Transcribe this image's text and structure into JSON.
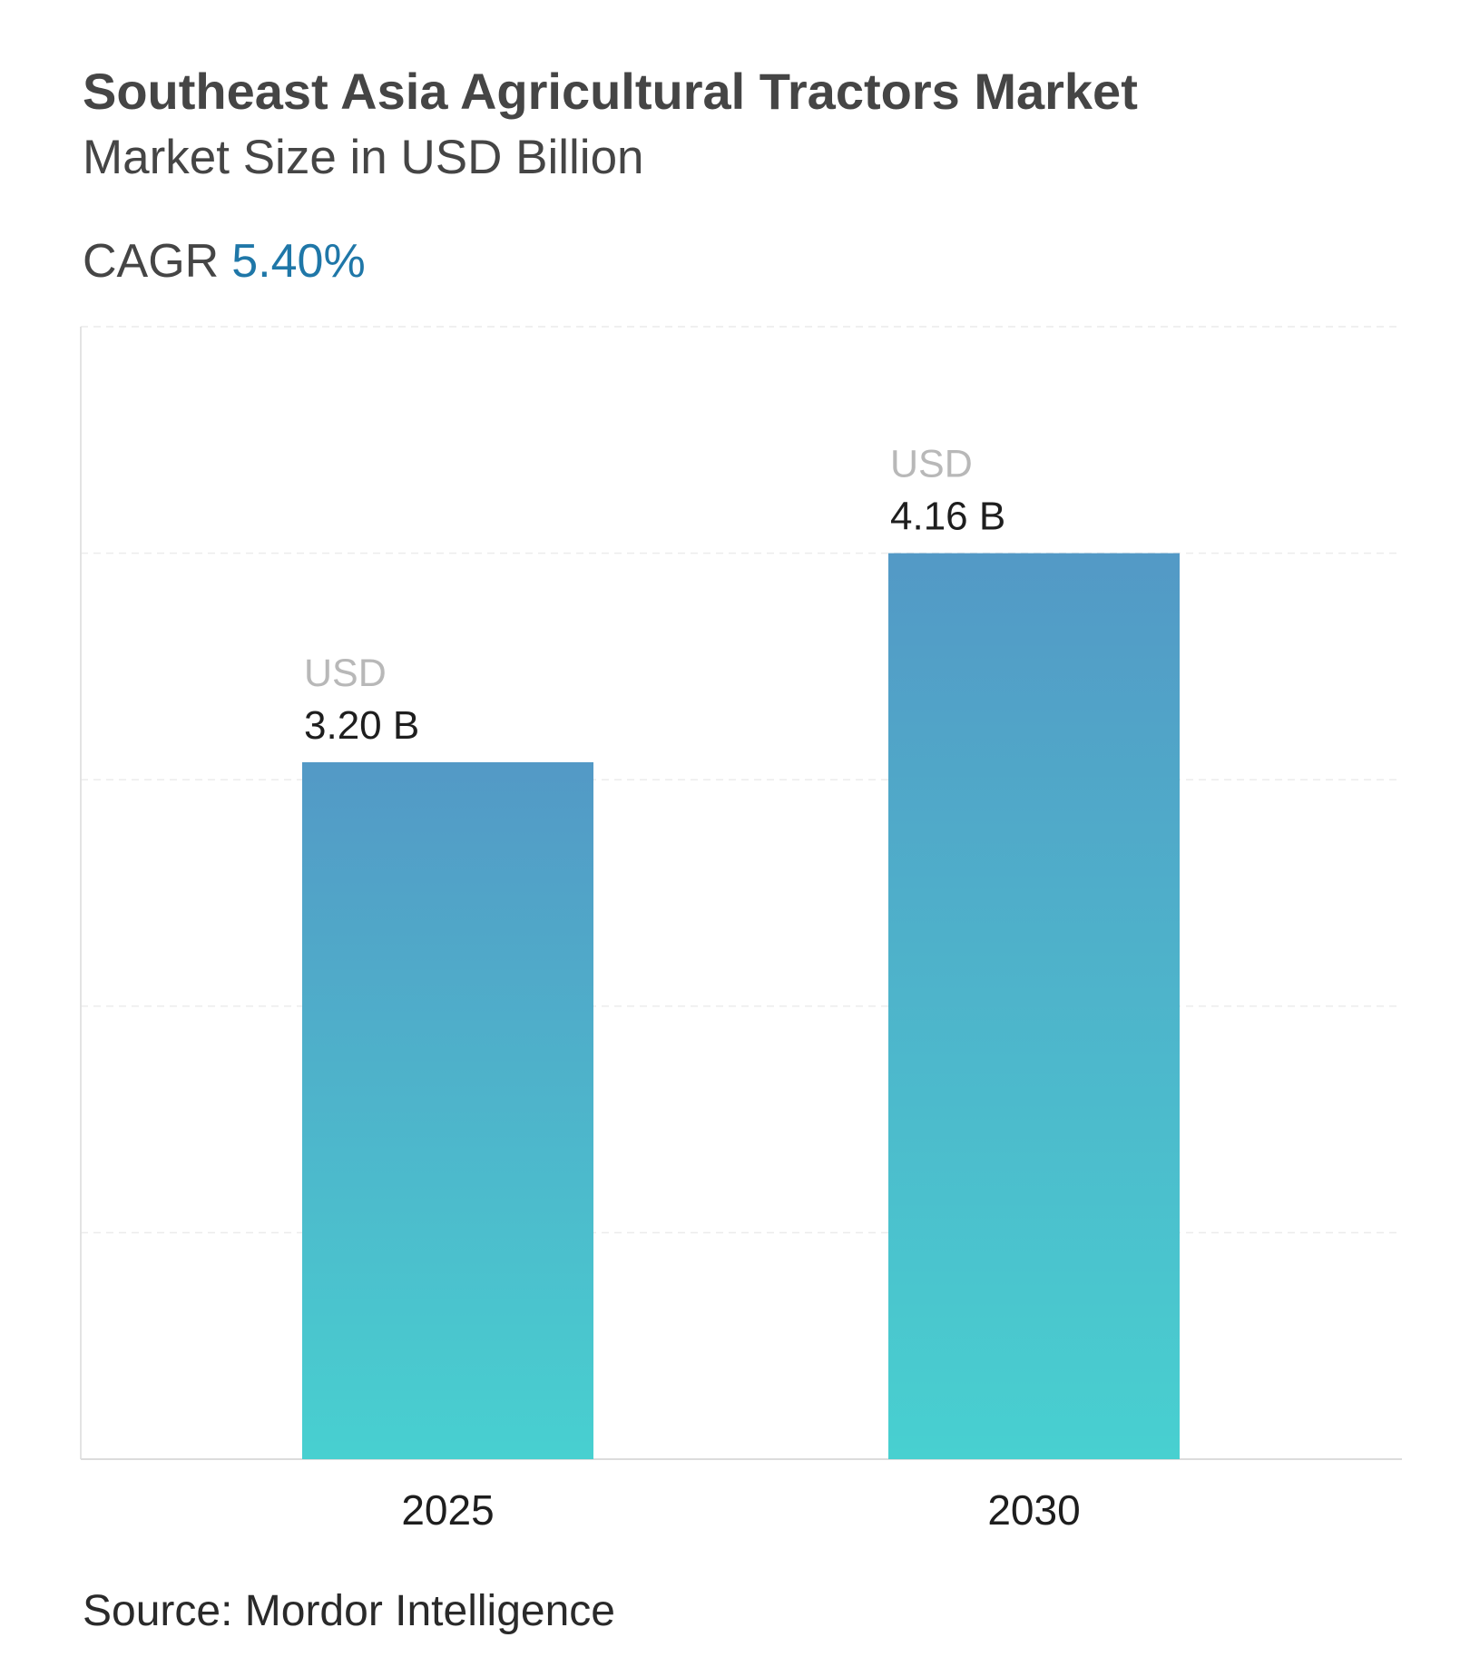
{
  "header": {
    "title": "Southeast Asia Agricultural Tractors Market",
    "subtitle": "Market Size in USD Billion",
    "cagr_label": "CAGR",
    "cagr_value": "5.40%"
  },
  "footer": {
    "source": "Source: Mordor Intelligence"
  },
  "colors": {
    "bar_top": "#5399c6",
    "bar_bottom": "#48d0d0",
    "cagr_accent": "#1f77a8"
  },
  "chart_data": {
    "type": "bar",
    "categories": [
      "2025",
      "2030"
    ],
    "values": [
      3.2,
      4.16
    ],
    "data_labels": [
      {
        "prefix": "USD",
        "value": "3.20 B"
      },
      {
        "prefix": "USD",
        "value": "4.16 B"
      }
    ],
    "xlabel": "",
    "ylabel": "",
    "ylim": [
      0,
      5.2
    ],
    "grid": true
  }
}
